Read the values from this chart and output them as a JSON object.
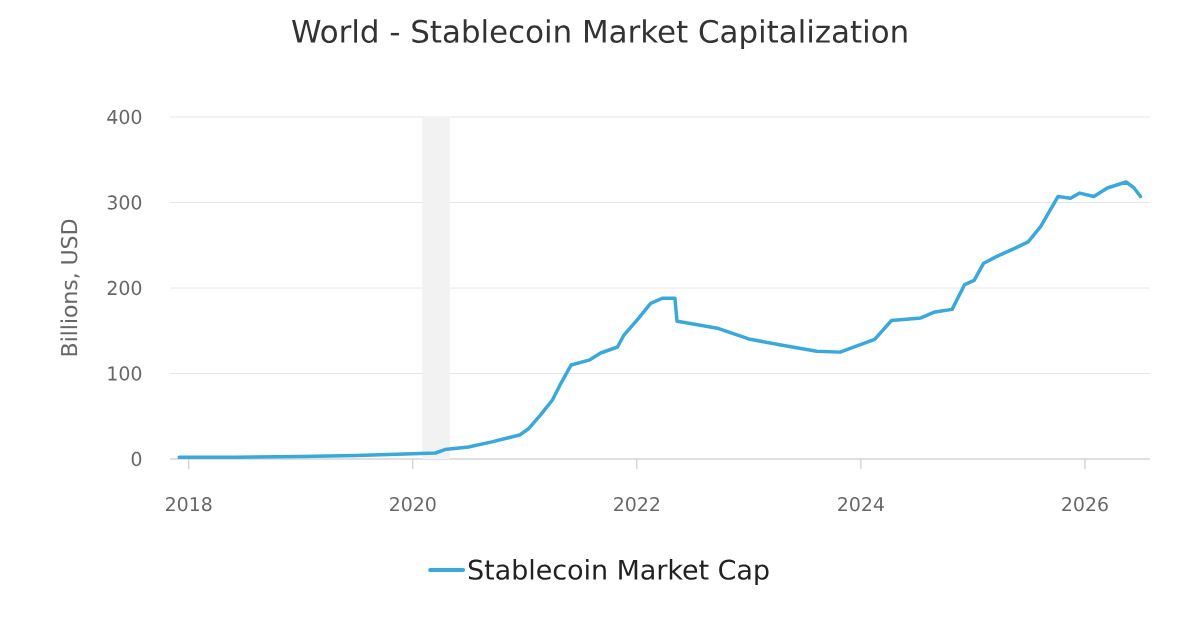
{
  "chart_data": {
    "type": "line",
    "title": "World - Stablecoin Market Capitalization",
    "ylabel": "Billions, USD",
    "x": [
      "2017-12-01",
      "2018-06-01",
      "2019-01-01",
      "2019-07-01",
      "2020-01-01",
      "2020-03-15",
      "2020-04-15",
      "2020-07-01",
      "2020-09-15",
      "2020-12-15",
      "2021-01-15",
      "2021-02-20",
      "2021-04-01",
      "2021-04-25",
      "2021-06-01",
      "2021-08-01",
      "2021-09-05",
      "2021-10-30",
      "2021-11-20",
      "2022-01-05",
      "2022-02-15",
      "2022-03-25",
      "2022-05-05",
      "2022-05-12",
      "2022-06-15",
      "2022-09-20",
      "2023-01-05",
      "2023-04-20",
      "2023-08-10",
      "2023-10-25",
      "2024-02-15",
      "2024-04-10",
      "2024-07-15",
      "2024-08-30",
      "2024-10-25",
      "2024-12-05",
      "2025-01-05",
      "2025-02-05",
      "2025-03-20",
      "2025-05-15",
      "2025-06-30",
      "2025-08-10",
      "2025-10-05",
      "2025-11-15",
      "2025-12-15",
      "2026-01-30",
      "2026-03-15",
      "2026-05-15",
      "2026-06-10",
      "2026-07-01"
    ],
    "series": [
      {
        "name": "Stablecoin Market Cap",
        "color": "#3aa8d8",
        "values": [
          2,
          2,
          3,
          4,
          6,
          7,
          11,
          14,
          20,
          28,
          36,
          51,
          69,
          86,
          110,
          116,
          124,
          131,
          145,
          164,
          182,
          188,
          188,
          161,
          159,
          153,
          140,
          133,
          126,
          125,
          140,
          162,
          165,
          172,
          175,
          204,
          209,
          229,
          237,
          246,
          254,
          272,
          307,
          305,
          311,
          307,
          317,
          324,
          317,
          307
        ]
      }
    ],
    "xlim": [
      "2017-11-01",
      "2026-08-01"
    ],
    "xticks": [
      "2018",
      "2020",
      "2022",
      "2024",
      "2026"
    ],
    "ylim": [
      0,
      400
    ],
    "yticks": [
      0,
      100,
      200,
      300,
      400
    ],
    "bands": [
      {
        "axis": "x",
        "from": "2020-02-01",
        "to": "2020-05-01",
        "color": "#f2f2f2"
      }
    ],
    "grid": "y",
    "legend": "bottom",
    "line_style": "solid"
  }
}
